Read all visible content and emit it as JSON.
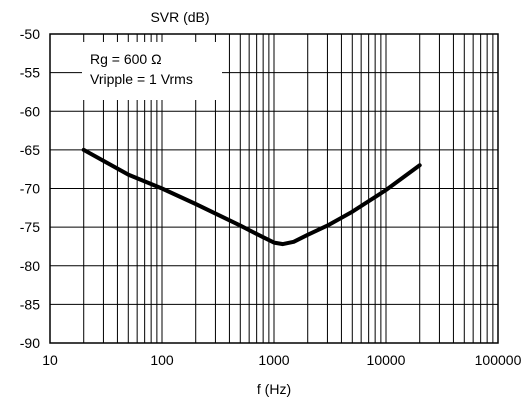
{
  "chart_data": {
    "type": "line",
    "title": "SVR (dB)",
    "xlabel": "f (Hz)",
    "ylabel": "",
    "x_scale": "log",
    "xlim": [
      10,
      100000
    ],
    "ylim": [
      -90,
      -50
    ],
    "x_ticks": [
      10,
      100,
      1000,
      10000,
      100000
    ],
    "x_tick_labels": [
      "10",
      "100",
      "1000",
      "10000",
      "100000"
    ],
    "y_ticks": [
      -50,
      -55,
      -60,
      -65,
      -70,
      -75,
      -80,
      -85,
      -90
    ],
    "y_tick_labels": [
      "-50",
      "-55",
      "-60",
      "-65",
      "-70",
      "-75",
      "-80",
      "-85",
      "-90"
    ],
    "grid": true,
    "annotations": [
      "Rg = 600 Ω",
      "Vripple = 1 Vrms"
    ],
    "series": [
      {
        "x": [
          20,
          50,
          100,
          200,
          500,
          800,
          1000,
          1200,
          1500,
          2000,
          3000,
          5000,
          10000,
          20000
        ],
        "values": [
          -65,
          -68.2,
          -70,
          -72,
          -74.8,
          -76.3,
          -77,
          -77.2,
          -76.9,
          -76,
          -74.8,
          -73,
          -70.2,
          -67
        ],
        "color": "#000000"
      }
    ]
  }
}
